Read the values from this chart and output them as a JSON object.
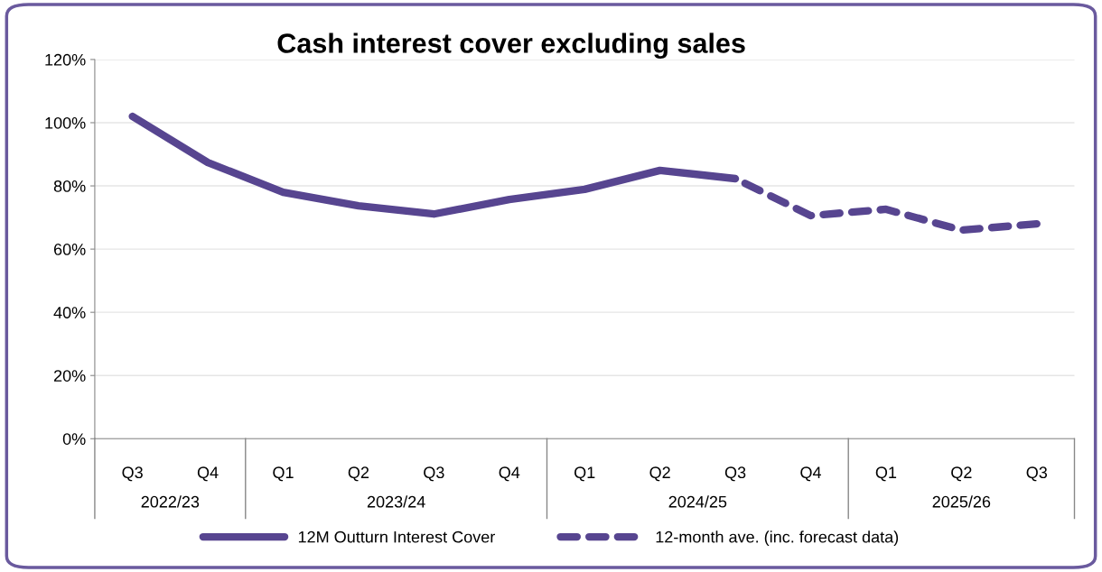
{
  "chart_data": {
    "type": "line",
    "title": "Cash interest cover excluding sales",
    "categories": [
      "Q3",
      "Q4",
      "Q1",
      "Q2",
      "Q3",
      "Q4",
      "Q1",
      "Q2",
      "Q3",
      "Q4",
      "Q1",
      "Q2",
      "Q3"
    ],
    "annotations": [
      "2022/23",
      "2023/24",
      "2024/25",
      "2025/26"
    ],
    "series": [
      {
        "name": "12M Outturn Interest Cover",
        "color": "#574590",
        "line_style": "solid",
        "values": [
          102,
          87.4,
          78,
          73.7,
          71.1,
          75.7,
          78.9,
          84.9,
          82.3,
          null,
          null,
          null,
          null
        ]
      },
      {
        "name": "12-month ave. (inc. forecast data)",
        "color": "#574590",
        "line_style": "dashed",
        "values": [
          null,
          null,
          null,
          null,
          null,
          null,
          null,
          null,
          82.3,
          70.6,
          72.6,
          66,
          68
        ]
      }
    ],
    "ylim": [
      0,
      120
    ],
    "yticks": [
      {
        "value": 0,
        "label": "0%"
      },
      {
        "value": 20,
        "label": "20%"
      },
      {
        "value": 40,
        "label": "40%"
      },
      {
        "value": 60,
        "label": "60%"
      },
      {
        "value": 80,
        "label": "80%"
      },
      {
        "value": 100,
        "label": "100%"
      },
      {
        "value": 120,
        "label": "120%"
      }
    ],
    "grid": "y",
    "legend": "bottom",
    "marker": "none"
  }
}
